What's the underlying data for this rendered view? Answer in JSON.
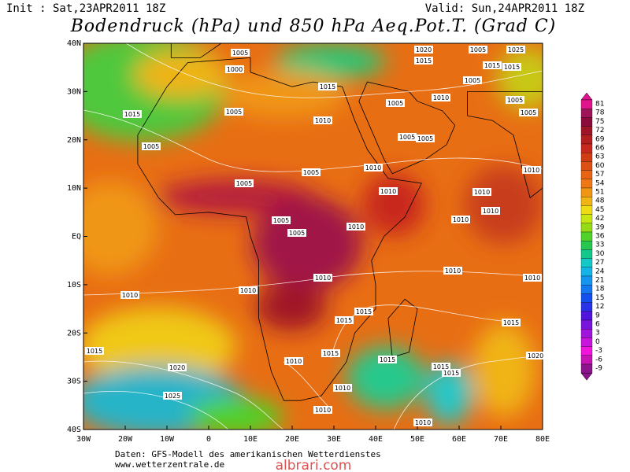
{
  "header": {
    "init": "Init : Sat,23APR2011 18Z",
    "valid": "Valid: Sun,24APR2011 18Z",
    "title": "Bodendruck (hPa) und 850 hPa Aeq.Pot.T. (Grad C)"
  },
  "map": {
    "lat_labels": [
      "40N",
      "30N",
      "20N",
      "10N",
      "EQ",
      "10S",
      "20S",
      "30S",
      "40S"
    ],
    "lon_labels": [
      "30W",
      "20W",
      "10W",
      "0",
      "10E",
      "20E",
      "30E",
      "40E",
      "50E",
      "60E",
      "70E",
      "80E"
    ],
    "isobar_labels": [
      1005,
      1000,
      1015,
      1005,
      1010,
      1005,
      1010,
      1005,
      1015,
      1020,
      1015,
      1005,
      1025,
      1015,
      1005,
      1005,
      1015,
      1005,
      1005,
      1005,
      1010,
      1005,
      1005,
      1010,
      1010,
      1010,
      1010,
      1005,
      1005,
      1010,
      1010,
      1010,
      1010,
      1010,
      1010,
      1010,
      1015,
      1015,
      1015,
      1015,
      1020,
      1010,
      1015,
      1015,
      1015,
      1015,
      1020,
      1010,
      1025,
      1010,
      1010
    ]
  },
  "colorbar": {
    "levels": [
      81,
      78,
      75,
      72,
      69,
      66,
      63,
      60,
      57,
      54,
      51,
      48,
      45,
      42,
      39,
      36,
      33,
      30,
      27,
      24,
      21,
      18,
      15,
      12,
      9,
      6,
      3,
      0,
      -3,
      -6,
      -9
    ],
    "colors": [
      "#e0148c",
      "#a0145a",
      "#8c0a3c",
      "#a01428",
      "#b41e1e",
      "#c8281e",
      "#d23c14",
      "#dc5014",
      "#e66414",
      "#f07814",
      "#f09614",
      "#f0b414",
      "#f0dc14",
      "#c8e614",
      "#96dc14",
      "#50d228",
      "#28c850",
      "#14c88c",
      "#14c8c8",
      "#14b4e6",
      "#1496f0",
      "#1478f0",
      "#1450f0",
      "#2832e6",
      "#5014dc",
      "#7814dc",
      "#a014dc",
      "#c814dc",
      "#f014dc",
      "#c814b4",
      "#8c148c"
    ]
  },
  "footer": {
    "source": "Daten: GFS-Modell des amerikanischen Wetterdienstes",
    "site": "www.wetterzentrale.de",
    "watermark": "albrari.com"
  }
}
